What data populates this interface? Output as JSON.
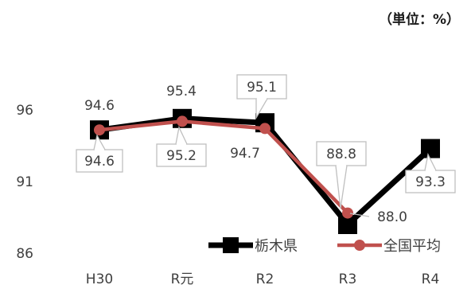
{
  "unit_label": "（単位：%）",
  "chart_data": {
    "type": "line",
    "title": "",
    "xlabel": "",
    "ylabel": "",
    "categories": [
      "H30",
      "R元",
      "R2",
      "R3",
      "R4"
    ],
    "yticks": [
      86,
      91,
      96
    ],
    "ylim": [
      86,
      96
    ],
    "grid": false,
    "legend_placement": "bottom-right",
    "series": [
      {
        "name": "栃木県",
        "values": [
          94.6,
          95.4,
          95.1,
          88.0,
          93.3
        ],
        "labels": [
          "94.6",
          "95.4",
          "95.1",
          "88.0",
          "93.3"
        ],
        "color": "#000000",
        "marker": "square"
      },
      {
        "name": "全国平均",
        "values": [
          94.6,
          95.2,
          94.7,
          88.8,
          null
        ],
        "labels": [
          "94.6",
          "95.2",
          "94.7",
          "88.8",
          null
        ],
        "color": "#c0504d",
        "marker": "circle"
      }
    ]
  }
}
